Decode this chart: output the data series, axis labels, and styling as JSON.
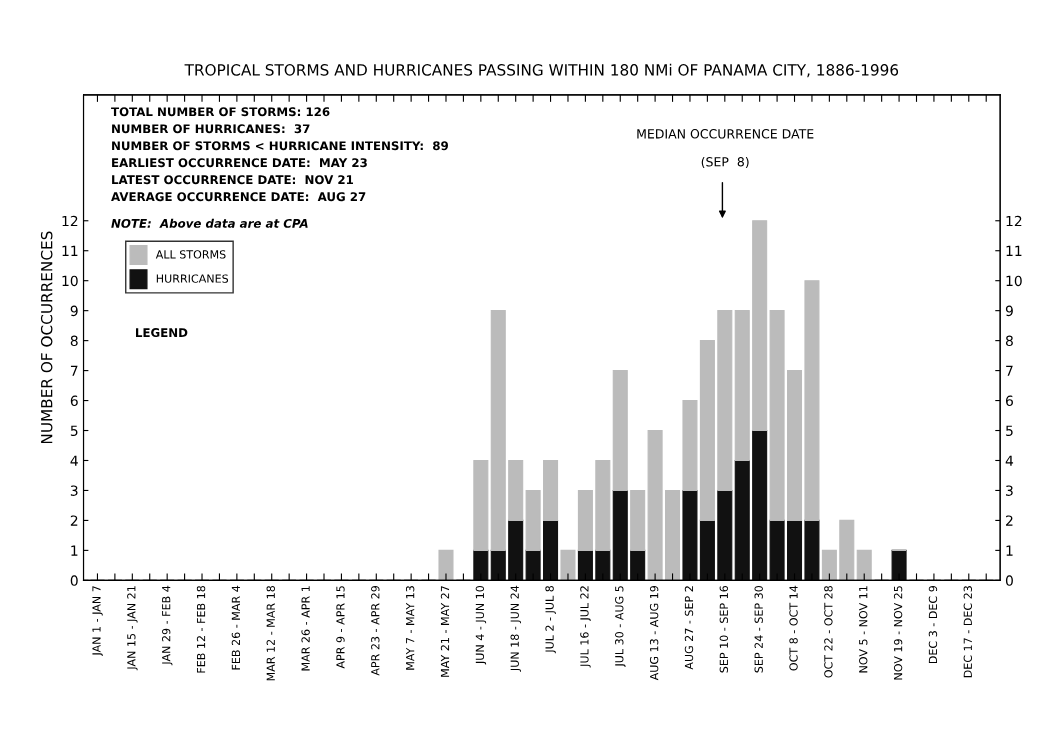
{
  "chart_data": {
    "type": "bar",
    "title": "TROPICAL STORMS AND HURRICANES PASSING WITHIN 180 NMi OF PANAMA CITY, 1886-1996",
    "ylabel": "NUMBER OF OCCURRENCES",
    "legend_title": "LEGEND",
    "stacked": true,
    "legend": "top left",
    "grid": false,
    "categories": [
      "JAN 1 - JAN 7",
      null,
      "JAN 15 - JAN 21",
      null,
      "JAN 29 - FEB 4",
      null,
      "FEB 12 - FEB 18",
      null,
      "FEB 26 - MAR 4",
      null,
      "MAR 12 - MAR 18",
      null,
      "MAR 26 - APR 1",
      null,
      "APR 9 - APR 15",
      null,
      "APR 23 - APR 29",
      null,
      "MAY 7 - MAY 13",
      null,
      "MAY 21 - MAY 27",
      null,
      "JUN 4 - JUN 10",
      null,
      "JUN 18 - JUN 24",
      null,
      "JUL 2 - JUL 8",
      null,
      "JUL 16 - JUL 22",
      null,
      "JUL 30 - AUG 5",
      null,
      "AUG 13 - AUG 19",
      null,
      "AUG 27 - SEP 2",
      null,
      "SEP 10 - SEP 16",
      null,
      "SEP 24 - SEP 30",
      null,
      "OCT 8 - OCT 14",
      null,
      "OCT 22 - OCT 28",
      null,
      "NOV 5 - NOV 11",
      null,
      "NOV 19 - NOV 25",
      null,
      "DEC 3 - DEC 9",
      null,
      "DEC 17 - DEC 23",
      null
    ],
    "series": [
      {
        "name": "HURRICANES",
        "color": "#111111",
        "values": [
          0,
          0,
          0,
          0,
          0,
          0,
          0,
          0,
          0,
          0,
          0,
          0,
          0,
          0,
          0,
          0,
          0,
          0,
          0,
          0,
          0,
          0,
          1,
          1,
          2,
          1,
          2,
          0,
          1,
          1,
          3,
          1,
          0,
          0,
          3,
          2,
          3,
          4,
          5,
          2,
          2,
          2,
          0,
          0,
          0,
          0,
          1,
          0,
          0,
          0,
          0,
          0
        ]
      },
      {
        "name": "ALL STORMS",
        "color": "#bbbbbb",
        "values": [
          0,
          0,
          0,
          0,
          0,
          0,
          0,
          0,
          0,
          0,
          0,
          0,
          0,
          0,
          0,
          0,
          0,
          0,
          0,
          0,
          1,
          0,
          3,
          8,
          2,
          2,
          2,
          1,
          2,
          3,
          4,
          2,
          5,
          3,
          3,
          6,
          6,
          5,
          7,
          7,
          5,
          8,
          1,
          2,
          1,
          0,
          0,
          0,
          0,
          0,
          0,
          0
        ]
      }
    ],
    "ylim": [
      0,
      16.2
    ],
    "yticks": [
      0,
      1,
      2,
      3,
      4,
      5,
      6,
      7,
      8,
      9,
      10,
      11,
      12
    ],
    "y2lim": [
      0,
      16.2
    ],
    "y2ticks": [
      0,
      1,
      2,
      3,
      4,
      5,
      6,
      7,
      8,
      9,
      10,
      11,
      12
    ],
    "annotations": [
      "TOTAL NUMBER OF STORMS: 126",
      "NUMBER OF HURRICANES:  37",
      "NUMBER OF STORMS < HURRICANE INTENSITY:  89",
      "EARLIEST OCCURRENCE DATE:  MAY 23",
      "LATEST OCCURRENCE DATE:  NOV 21",
      "AVERAGE OCCURRENCE DATE:  AUG 27",
      "NOTE:  Above data are at CPA",
      "MEDIAN OCCURRENCE DATE\n\n(SEP  8)"
    ]
  }
}
